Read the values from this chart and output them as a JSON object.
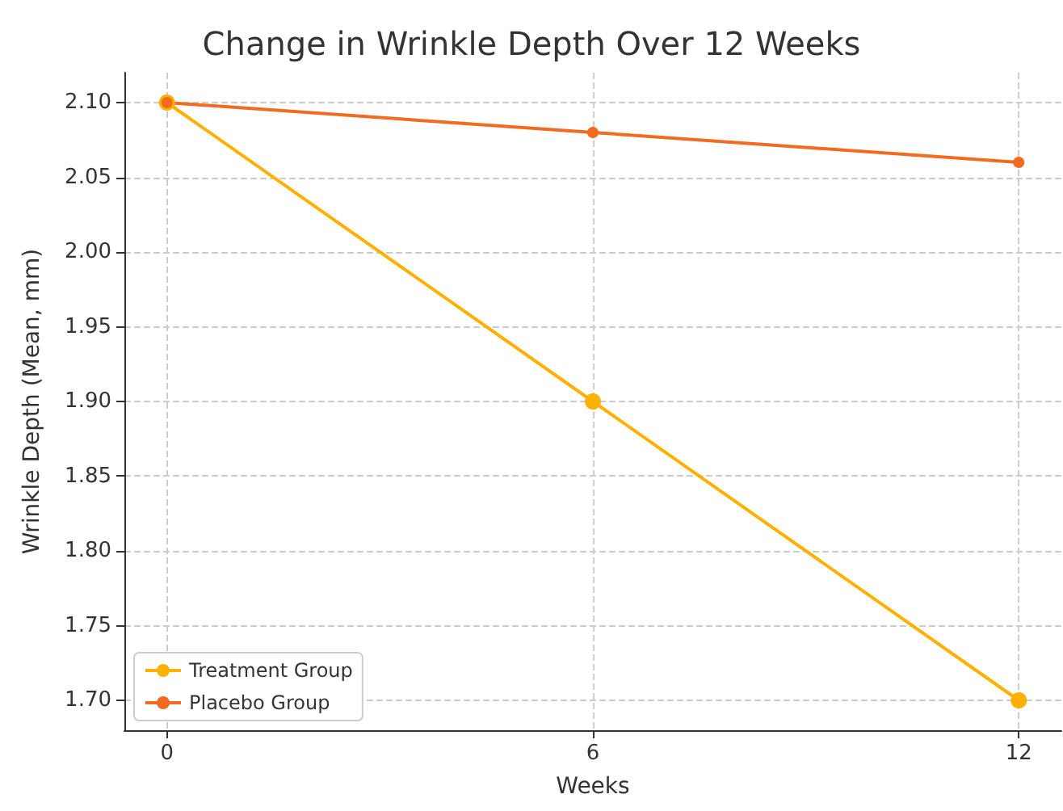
{
  "chart_data": {
    "type": "line",
    "title": "Change in Wrinkle Depth Over 12 Weeks",
    "xlabel": "Weeks",
    "ylabel": "Wrinkle Depth (Mean, mm)",
    "x": [
      0,
      6,
      12
    ],
    "series": [
      {
        "name": "Treatment Group",
        "color": "#ffb000",
        "values": [
          2.1,
          1.9,
          1.7
        ]
      },
      {
        "name": "Placebo Group",
        "color": "#f26b21",
        "values": [
          2.1,
          2.08,
          2.06
        ]
      }
    ],
    "xlim": [
      -0.6,
      12.6
    ],
    "xticks": [
      0,
      6,
      12
    ],
    "ylim": [
      1.68,
      2.12
    ],
    "yticks": [
      {
        "value": 1.7,
        "label": "1.70"
      },
      {
        "value": 1.75,
        "label": "1.75"
      },
      {
        "value": 1.8,
        "label": "1.80"
      },
      {
        "value": 1.85,
        "label": "1.85"
      },
      {
        "value": 1.9,
        "label": "1.90"
      },
      {
        "value": 1.95,
        "label": "1.95"
      },
      {
        "value": 2.0,
        "label": "2.00"
      },
      {
        "value": 2.05,
        "label": "2.05"
      },
      {
        "value": 2.1,
        "label": "2.10"
      }
    ],
    "grid": true,
    "legend": "bottom left",
    "marker": "circle",
    "line_style": "solid"
  }
}
